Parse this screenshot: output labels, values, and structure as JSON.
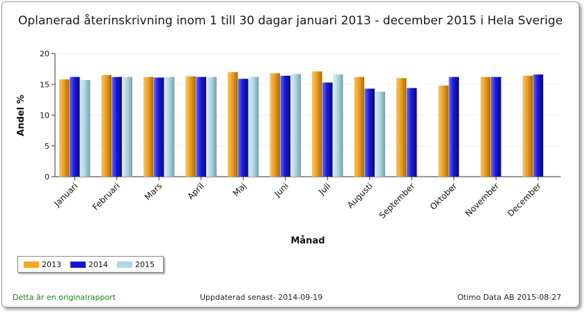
{
  "chart_data": {
    "type": "bar",
    "title": "Oplanerad återinskrivning inom 1 till 30 dagar januari 2013 - december 2015 i Hela Sverige",
    "xlabel": "Månad",
    "ylabel": "Andel %",
    "ylim": [
      0,
      20
    ],
    "yticks": [
      "0",
      "5",
      "10",
      "15",
      "20"
    ],
    "grid": true,
    "legend_position": "bottom-left",
    "categories": [
      "Januari",
      "Februari",
      "Mars",
      "April",
      "Maj",
      "Juni",
      "Juli",
      "Augusti",
      "September",
      "Oktober",
      "November",
      "December"
    ],
    "series": [
      {
        "name": "2013",
        "color": "#f5a623",
        "values": [
          15.8,
          16.5,
          16.2,
          16.3,
          17.0,
          16.8,
          17.1,
          16.2,
          16.0,
          14.8,
          16.2,
          16.4
        ]
      },
      {
        "name": "2014",
        "color": "#1414d2",
        "values": [
          16.2,
          16.2,
          16.1,
          16.2,
          15.9,
          16.4,
          15.3,
          14.3,
          14.4,
          16.2,
          16.2,
          16.6
        ]
      },
      {
        "name": "2015",
        "color": "#add8e6",
        "values": [
          15.7,
          16.2,
          16.2,
          16.2,
          16.2,
          16.7,
          16.6,
          13.8,
          null,
          null,
          null,
          null
        ]
      }
    ]
  },
  "footer": {
    "left": "Detta är en originalrapport",
    "center": "Uppdaterad senast- 2014-09-19",
    "right": "Otimo Data AB 2015-08-27"
  }
}
